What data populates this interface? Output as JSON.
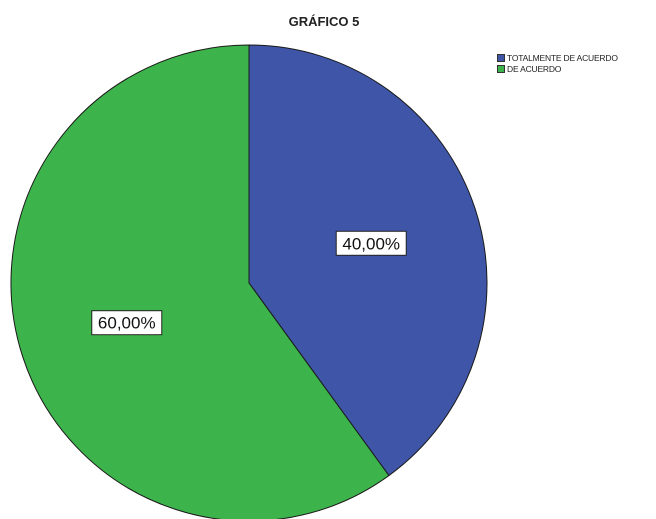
{
  "chart_data": {
    "type": "pie",
    "title": "GRÁFICO 5",
    "slices": [
      {
        "label": "TOTALMENTE DE ACUERDO",
        "value": 40.0,
        "display": "40,00%",
        "color": "#3F55A7"
      },
      {
        "label": "DE ACUERDO",
        "value": 60.0,
        "display": "60,00%",
        "color": "#3CB44B"
      }
    ],
    "legend_position": "top-right",
    "start_angle": "12 o'clock",
    "direction": "clockwise"
  }
}
